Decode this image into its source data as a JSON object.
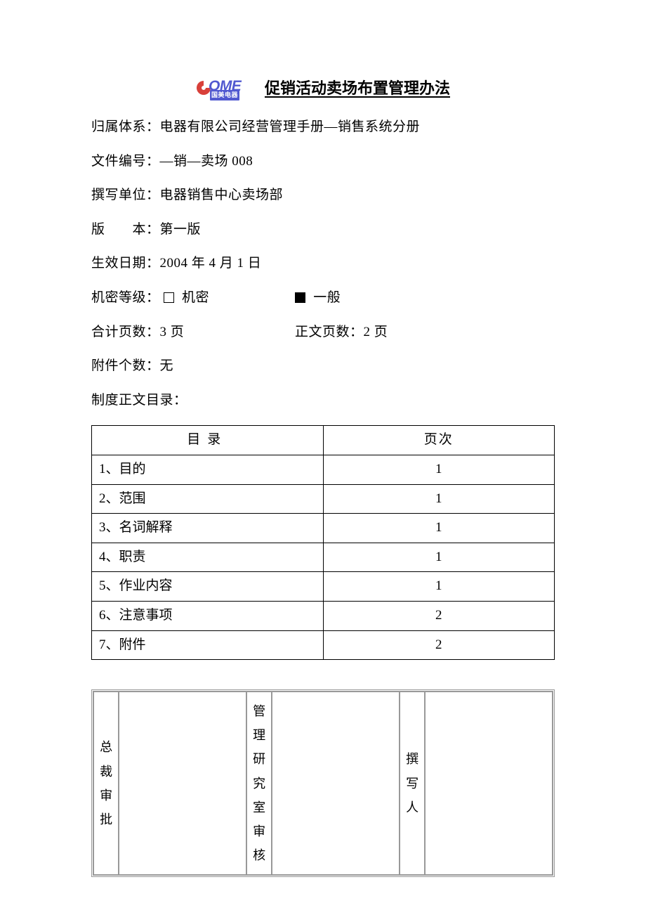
{
  "colors": {
    "logo_red": "#d8403a",
    "logo_blue": "#5159d0",
    "text": "#000000",
    "background": "#ffffff",
    "sign_border": "#999999"
  },
  "header": {
    "logo_main": "OME",
    "logo_sub": "国美电器",
    "title": "促销活动卖场布置管理办法"
  },
  "meta": {
    "system_label": "归属体系：",
    "system_value": "电器有限公司经营管理手册—销售系统分册",
    "docno_label": "文件编号：",
    "docno_value": "—销—卖场 008",
    "author_unit_label": "撰写单位：",
    "author_unit_value": "电器销售中心卖场部",
    "version_label": "版　　本：",
    "version_value": "第一版",
    "effective_label": "生效日期：",
    "effective_value": "2004 年 4 月 1 日",
    "secrecy_label": "机密等级：",
    "secrecy_opt1": "机密",
    "secrecy_opt2": "一般",
    "secrecy_opt1_checked": false,
    "secrecy_opt2_checked": true,
    "total_pages_label": "合计页数：",
    "total_pages_value": "3 页",
    "body_pages_label": "正文页数：",
    "body_pages_value": "2 页",
    "attach_label": "附件个数：",
    "attach_value": "无",
    "toc_heading": "制度正文目录："
  },
  "toc": {
    "col1": "目录",
    "col2": "页次",
    "rows": [
      {
        "item": "1、目的",
        "page": "1"
      },
      {
        "item": "2、范围",
        "page": "1"
      },
      {
        "item": "3、名词解释",
        "page": "1"
      },
      {
        "item": "4、职责",
        "page": "1"
      },
      {
        "item": "5、作业内容",
        "page": "1"
      },
      {
        "item": "6、注意事项",
        "page": "2"
      },
      {
        "item": "7、附件",
        "page": "2"
      }
    ]
  },
  "signoff": {
    "col1": "总裁审批",
    "col2": "管理研究室审核",
    "col3": "撰写人"
  }
}
